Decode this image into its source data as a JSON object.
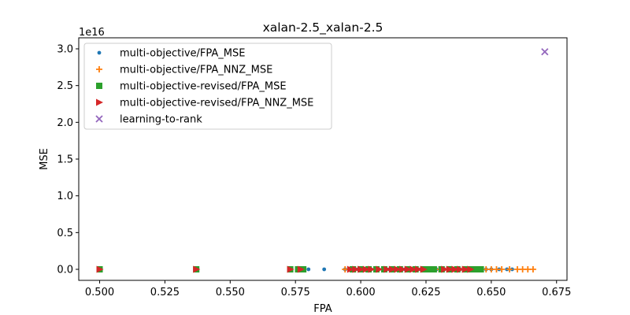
{
  "chart_data": {
    "type": "scatter",
    "title": "xalan-2.5_xalan-2.5",
    "xlabel": "FPA",
    "ylabel": "MSE",
    "y_offset_text": "1e16",
    "xlim": [
      0.492,
      0.679
    ],
    "ylim": [
      -0.15,
      3.15
    ],
    "x_ticks": [
      0.5,
      0.525,
      0.55,
      0.575,
      0.6,
      0.625,
      0.65,
      0.675
    ],
    "x_tick_labels": [
      "0.500",
      "0.525",
      "0.550",
      "0.575",
      "0.600",
      "0.625",
      "0.650",
      "0.675"
    ],
    "y_ticks": [
      0.0,
      0.5,
      1.0,
      1.5,
      2.0,
      2.5,
      3.0
    ],
    "y_tick_labels": [
      "0.0",
      "0.5",
      "1.0",
      "1.5",
      "2.0",
      "2.5",
      "3.0"
    ],
    "grid": false,
    "legend_position": "top-left",
    "series": [
      {
        "name": "multi-objective/FPA_MSE",
        "marker": "dot",
        "color": "#1f77b4",
        "points": [
          [
            0.5,
            0
          ],
          [
            0.537,
            0
          ],
          [
            0.573,
            0
          ],
          [
            0.576,
            0
          ],
          [
            0.578,
            0
          ],
          [
            0.58,
            0
          ],
          [
            0.586,
            0
          ],
          [
            0.594,
            0
          ],
          [
            0.597,
            0
          ],
          [
            0.599,
            0
          ],
          [
            0.6,
            0
          ],
          [
            0.602,
            0
          ],
          [
            0.604,
            0
          ],
          [
            0.606,
            0
          ],
          [
            0.609,
            0
          ],
          [
            0.611,
            0
          ],
          [
            0.613,
            0
          ],
          [
            0.615,
            0
          ],
          [
            0.617,
            0
          ],
          [
            0.619,
            0
          ],
          [
            0.621,
            0
          ],
          [
            0.623,
            0
          ],
          [
            0.625,
            0
          ],
          [
            0.627,
            0
          ],
          [
            0.629,
            0
          ],
          [
            0.632,
            0
          ],
          [
            0.634,
            0
          ],
          [
            0.636,
            0
          ],
          [
            0.638,
            0
          ],
          [
            0.64,
            0
          ],
          [
            0.642,
            0
          ],
          [
            0.644,
            0
          ],
          [
            0.646,
            0
          ],
          [
            0.648,
            0
          ],
          [
            0.65,
            0
          ],
          [
            0.653,
            0
          ],
          [
            0.656,
            0
          ],
          [
            0.658,
            0
          ]
        ]
      },
      {
        "name": "multi-objective/FPA_NNZ_MSE",
        "marker": "plus",
        "color": "#ff7f0e",
        "points": [
          [
            0.5,
            0
          ],
          [
            0.537,
            0
          ],
          [
            0.576,
            0
          ],
          [
            0.594,
            0
          ],
          [
            0.596,
            0
          ],
          [
            0.598,
            0
          ],
          [
            0.6,
            0
          ],
          [
            0.603,
            0
          ],
          [
            0.606,
            0
          ],
          [
            0.609,
            0
          ],
          [
            0.612,
            0
          ],
          [
            0.615,
            0
          ],
          [
            0.618,
            0
          ],
          [
            0.621,
            0
          ],
          [
            0.624,
            0
          ],
          [
            0.627,
            0
          ],
          [
            0.63,
            0
          ],
          [
            0.633,
            0
          ],
          [
            0.636,
            0
          ],
          [
            0.639,
            0
          ],
          [
            0.642,
            0
          ],
          [
            0.645,
            0
          ],
          [
            0.648,
            0
          ],
          [
            0.65,
            0
          ],
          [
            0.652,
            0
          ],
          [
            0.654,
            0
          ],
          [
            0.657,
            0
          ],
          [
            0.66,
            0
          ],
          [
            0.662,
            0
          ],
          [
            0.664,
            0
          ],
          [
            0.666,
            0
          ]
        ]
      },
      {
        "name": "multi-objective-revised/FPA_MSE",
        "marker": "square",
        "color": "#2ca02c",
        "points": [
          [
            0.5,
            0
          ],
          [
            0.537,
            0
          ],
          [
            0.573,
            0
          ],
          [
            0.576,
            0
          ],
          [
            0.578,
            0
          ],
          [
            0.597,
            0
          ],
          [
            0.6,
            0
          ],
          [
            0.603,
            0
          ],
          [
            0.606,
            0
          ],
          [
            0.609,
            0
          ],
          [
            0.612,
            0
          ],
          [
            0.615,
            0
          ],
          [
            0.618,
            0
          ],
          [
            0.621,
            0
          ],
          [
            0.624,
            0
          ],
          [
            0.626,
            0
          ],
          [
            0.628,
            0
          ],
          [
            0.631,
            0
          ],
          [
            0.634,
            0
          ],
          [
            0.637,
            0
          ],
          [
            0.64,
            0
          ],
          [
            0.642,
            0
          ],
          [
            0.644,
            0
          ],
          [
            0.646,
            0
          ]
        ]
      },
      {
        "name": "multi-objective-revised/FPA_NNZ_MSE",
        "marker": "triangle-right",
        "color": "#d62728",
        "points": [
          [
            0.5,
            0
          ],
          [
            0.537,
            0
          ],
          [
            0.573,
            0
          ],
          [
            0.577,
            0
          ],
          [
            0.596,
            0
          ],
          [
            0.598,
            0
          ],
          [
            0.6,
            0
          ],
          [
            0.602,
            0
          ],
          [
            0.604,
            0
          ],
          [
            0.607,
            0
          ],
          [
            0.61,
            0
          ],
          [
            0.612,
            0
          ],
          [
            0.614,
            0
          ],
          [
            0.616,
            0
          ],
          [
            0.618,
            0
          ],
          [
            0.62,
            0
          ],
          [
            0.622,
            0
          ],
          [
            0.624,
            0
          ],
          [
            0.632,
            0
          ],
          [
            0.634,
            0
          ],
          [
            0.636,
            0
          ],
          [
            0.638,
            0
          ],
          [
            0.64,
            0
          ],
          [
            0.642,
            0
          ]
        ]
      },
      {
        "name": "learning-to-rank",
        "marker": "x",
        "color": "#9467bd",
        "points": [
          [
            0.6705,
            2.96
          ]
        ]
      }
    ]
  }
}
